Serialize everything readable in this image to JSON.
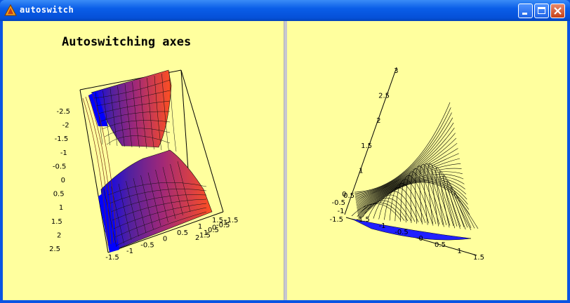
{
  "window": {
    "title": "autoswitch"
  },
  "left_plot": {
    "title": "Autoswitching axes",
    "z_ticks": [
      "-2.5",
      "-2",
      "-1.5",
      "-1",
      "-0.5",
      "0",
      "0.5",
      "1",
      "1.5",
      "2",
      "2.5"
    ],
    "x_ticks": [
      "-1.5",
      "-1",
      "-0.5",
      "0",
      "0.5",
      "1",
      "1.5"
    ],
    "y_ticks": [
      "2",
      "1.5",
      "1",
      "0.5",
      "0",
      "-0.5",
      "-1",
      "-1.5"
    ]
  },
  "right_plot": {
    "z_ticks": [
      "0.5",
      "1",
      "1.5",
      "2",
      "2.5",
      "3"
    ],
    "x_ticks": [
      "-1.5",
      "-1",
      "-0.5",
      "0",
      "0.5",
      "1",
      "1.5"
    ],
    "y_ticks": [
      "-1.5",
      "-1",
      "-0.5",
      "0"
    ]
  },
  "colors": {
    "background": "#ffff9e",
    "titlebar": "#0a5ee8",
    "surface_low": "#0000ff",
    "surface_high": "#ff5020"
  }
}
